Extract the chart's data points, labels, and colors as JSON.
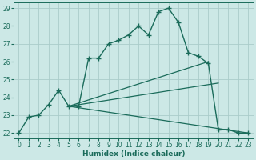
{
  "xlabel": "Humidex (Indice chaleur)",
  "xlim": [
    -0.5,
    23.5
  ],
  "ylim": [
    21.7,
    29.3
  ],
  "yticks": [
    22,
    23,
    24,
    25,
    26,
    27,
    28,
    29
  ],
  "xticks": [
    0,
    1,
    2,
    3,
    4,
    5,
    6,
    7,
    8,
    9,
    10,
    11,
    12,
    13,
    14,
    15,
    16,
    17,
    18,
    19,
    20,
    21,
    22,
    23
  ],
  "bg_color": "#cce8e6",
  "grid_color": "#aaccca",
  "line_color": "#1a6b5a",
  "main_line": {
    "x": [
      0,
      1,
      2,
      3,
      4,
      5,
      6,
      7,
      8,
      9,
      10,
      11,
      12,
      13,
      14,
      15,
      16,
      17,
      18,
      19,
      20,
      21,
      22,
      23
    ],
    "y": [
      22.0,
      22.9,
      23.0,
      23.6,
      24.4,
      23.5,
      23.5,
      26.2,
      26.2,
      27.0,
      27.2,
      27.5,
      28.0,
      27.5,
      28.8,
      29.0,
      28.2,
      26.5,
      26.3,
      25.9,
      22.2,
      22.2,
      22.0,
      22.0
    ]
  },
  "extra_lines": [
    {
      "x": [
        5,
        19
      ],
      "y": [
        23.5,
        26.0
      ]
    },
    {
      "x": [
        5,
        20
      ],
      "y": [
        23.5,
        24.8
      ]
    },
    {
      "x": [
        5,
        23
      ],
      "y": [
        23.5,
        22.0
      ]
    }
  ]
}
